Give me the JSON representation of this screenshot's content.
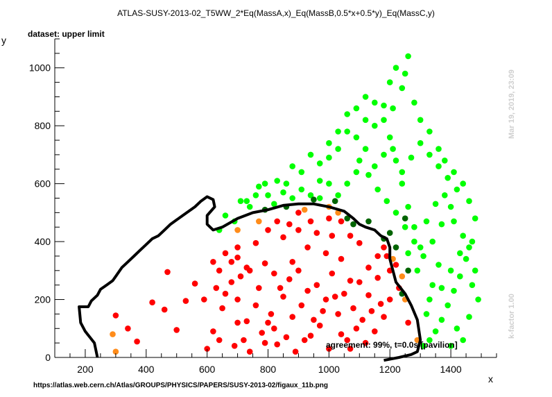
{
  "chart_data": {
    "type": "scatter",
    "title": "ATLAS-SUSY-2013-02_T5WW_2*Eq(MassA,x)_Eq(MassB,0.5*x+0.5*y)_Eq(MassC,y)",
    "subtitle": "dataset: upper limit",
    "xlabel": "x",
    "ylabel": "y",
    "xlim": [
      100,
      1550
    ],
    "ylim": [
      0,
      1100
    ],
    "x_ticks": [
      200,
      400,
      600,
      800,
      1000,
      1200,
      1400
    ],
    "y_ticks": [
      0,
      200,
      400,
      600,
      800,
      1000
    ],
    "grid": false,
    "colors": {
      "excluded": "#ff0000",
      "allowed": "#00ff00",
      "excluded_border": "#ff8c1a",
      "allowed_border": "#006400",
      "contour": "#000000"
    },
    "series": [
      {
        "key": "excluded",
        "points": [
          [
            300,
            145
          ],
          [
            340,
            100
          ],
          [
            370,
            55
          ],
          [
            420,
            190
          ],
          [
            460,
            165
          ],
          [
            470,
            295
          ],
          [
            500,
            95
          ],
          [
            530,
            195
          ],
          [
            560,
            255
          ],
          [
            590,
            200
          ],
          [
            620,
            330
          ],
          [
            640,
            300
          ],
          [
            660,
            360
          ],
          [
            700,
            345
          ],
          [
            730,
            310
          ],
          [
            760,
            395
          ],
          [
            790,
            325
          ],
          [
            820,
            290
          ],
          [
            850,
            415
          ],
          [
            880,
            330
          ],
          [
            900,
            440
          ],
          [
            930,
            380
          ],
          [
            960,
            430
          ],
          [
            990,
            360
          ],
          [
            1010,
            290
          ],
          [
            1040,
            340
          ],
          [
            1070,
            265
          ],
          [
            1100,
            395
          ],
          [
            1130,
            215
          ],
          [
            1160,
            275
          ],
          [
            1190,
            350
          ],
          [
            1200,
            200
          ],
          [
            1230,
            240
          ],
          [
            1260,
            120
          ],
          [
            1180,
            140
          ],
          [
            1150,
            90
          ],
          [
            1120,
            50
          ],
          [
            1090,
            100
          ],
          [
            1060,
            60
          ],
          [
            1030,
            150
          ],
          [
            1000,
            30
          ],
          [
            970,
            110
          ],
          [
            940,
            75
          ],
          [
            910,
            180
          ],
          [
            880,
            140
          ],
          [
            850,
            210
          ],
          [
            820,
            100
          ],
          [
            790,
            50
          ],
          [
            760,
            180
          ],
          [
            730,
            125
          ],
          [
            700,
            200
          ],
          [
            680,
            260
          ],
          [
            650,
            170
          ],
          [
            620,
            90
          ],
          [
            600,
            30
          ],
          [
            640,
            60
          ],
          [
            690,
            40
          ],
          [
            740,
            20
          ],
          [
            780,
            85
          ],
          [
            810,
            150
          ],
          [
            840,
            240
          ],
          [
            870,
            270
          ],
          [
            900,
            300
          ],
          [
            930,
            230
          ],
          [
            960,
            250
          ],
          [
            990,
            200
          ],
          [
            1020,
            210
          ],
          [
            1050,
            220
          ],
          [
            1080,
            170
          ],
          [
            1110,
            130
          ],
          [
            1140,
            160
          ],
          [
            1170,
            185
          ],
          [
            1200,
            300
          ],
          [
            1220,
            320
          ],
          [
            980,
            160
          ],
          [
            950,
            130
          ],
          [
            920,
            60
          ],
          [
            890,
            20
          ],
          [
            860,
            70
          ],
          [
            830,
            45
          ],
          [
            800,
            120
          ],
          [
            770,
            240
          ],
          [
            740,
            300
          ],
          [
            710,
            280
          ],
          [
            680,
            330
          ],
          [
            660,
            220
          ],
          [
            630,
            240
          ],
          [
            700,
            120
          ],
          [
            720,
            60
          ],
          [
            1040,
            80
          ],
          [
            1070,
            30
          ],
          [
            1100,
            260
          ],
          [
            1130,
            310
          ],
          [
            1160,
            350
          ],
          [
            1180,
            380
          ],
          [
            1010,
            420
          ],
          [
            1040,
            470
          ],
          [
            1070,
            420
          ],
          [
            870,
            460
          ],
          [
            900,
            500
          ],
          [
            940,
            470
          ],
          [
            830,
            470
          ],
          [
            800,
            440
          ],
          [
            700,
            380
          ],
          [
            1000,
            480
          ]
        ]
      },
      {
        "key": "allowed",
        "points": [
          [
            640,
            440
          ],
          [
            660,
            490
          ],
          [
            690,
            470
          ],
          [
            710,
            540
          ],
          [
            740,
            520
          ],
          [
            770,
            590
          ],
          [
            800,
            560
          ],
          [
            830,
            610
          ],
          [
            860,
            600
          ],
          [
            880,
            660
          ],
          [
            910,
            640
          ],
          [
            940,
            700
          ],
          [
            970,
            670
          ],
          [
            1000,
            740
          ],
          [
            1030,
            720
          ],
          [
            1060,
            780
          ],
          [
            1090,
            760
          ],
          [
            1120,
            820
          ],
          [
            1150,
            800
          ],
          [
            1180,
            870
          ],
          [
            1210,
            860
          ],
          [
            1240,
            930
          ],
          [
            1260,
            1040
          ],
          [
            1250,
            980
          ],
          [
            1220,
            1000
          ],
          [
            1200,
            950
          ],
          [
            1280,
            880
          ],
          [
            1300,
            820
          ],
          [
            1330,
            780
          ],
          [
            1360,
            720
          ],
          [
            1380,
            680
          ],
          [
            1410,
            640
          ],
          [
            1440,
            600
          ],
          [
            1460,
            540
          ],
          [
            1480,
            480
          ],
          [
            1470,
            400
          ],
          [
            1450,
            340
          ],
          [
            1430,
            280
          ],
          [
            1410,
            230
          ],
          [
            1390,
            180
          ],
          [
            1370,
            130
          ],
          [
            1350,
            90
          ],
          [
            1330,
            60
          ],
          [
            1310,
            40
          ],
          [
            1320,
            150
          ],
          [
            1340,
            250
          ],
          [
            1360,
            320
          ],
          [
            1300,
            380
          ],
          [
            1280,
            450
          ],
          [
            1260,
            520
          ],
          [
            1240,
            600
          ],
          [
            1220,
            680
          ],
          [
            1200,
            760
          ],
          [
            1180,
            820
          ],
          [
            1150,
            880
          ],
          [
            1120,
            900
          ],
          [
            1090,
            860
          ],
          [
            1060,
            840
          ],
          [
            1030,
            780
          ],
          [
            1000,
            690
          ],
          [
            970,
            610
          ],
          [
            940,
            560
          ],
          [
            910,
            580
          ],
          [
            880,
            550
          ],
          [
            850,
            570
          ],
          [
            820,
            530
          ],
          [
            790,
            600
          ],
          [
            760,
            560
          ],
          [
            730,
            540
          ],
          [
            1100,
            680
          ],
          [
            1130,
            630
          ],
          [
            1160,
            580
          ],
          [
            1190,
            540
          ],
          [
            1220,
            500
          ],
          [
            1250,
            450
          ],
          [
            1280,
            400
          ],
          [
            1310,
            350
          ],
          [
            1340,
            400
          ],
          [
            1370,
            460
          ],
          [
            1400,
            520
          ],
          [
            1420,
            580
          ],
          [
            1390,
            620
          ],
          [
            1360,
            660
          ],
          [
            1330,
            700
          ],
          [
            1300,
            740
          ],
          [
            1270,
            690
          ],
          [
            1240,
            640
          ],
          [
            1210,
            720
          ],
          [
            1180,
            700
          ],
          [
            1150,
            660
          ],
          [
            1120,
            720
          ],
          [
            1090,
            640
          ],
          [
            1060,
            600
          ],
          [
            1030,
            560
          ],
          [
            1000,
            600
          ],
          [
            970,
            550
          ],
          [
            1320,
            470
          ],
          [
            1350,
            530
          ],
          [
            1380,
            560
          ],
          [
            1410,
            470
          ],
          [
            1440,
            420
          ],
          [
            1460,
            380
          ],
          [
            1480,
            300
          ],
          [
            1490,
            200
          ],
          [
            1460,
            140
          ],
          [
            1420,
            100
          ],
          [
            1400,
            40
          ],
          [
            1440,
            60
          ],
          [
            1470,
            250
          ],
          [
            1430,
            360
          ],
          [
            1400,
            300
          ],
          [
            1370,
            240
          ],
          [
            1330,
            200
          ],
          [
            1290,
            300
          ],
          [
            1260,
            360
          ]
        ]
      },
      {
        "key": "excluded_border",
        "points": [
          [
            290,
            80
          ],
          [
            300,
            20
          ],
          [
            770,
            470
          ],
          [
            700,
            440
          ],
          [
            920,
            510
          ],
          [
            1000,
            520
          ],
          [
            1030,
            500
          ],
          [
            1210,
            340
          ],
          [
            1240,
            280
          ],
          [
            1250,
            200
          ],
          [
            1290,
            60
          ]
        ]
      },
      {
        "key": "allowed_border",
        "points": [
          [
            790,
            510
          ],
          [
            860,
            520
          ],
          [
            950,
            545
          ],
          [
            1020,
            540
          ],
          [
            1060,
            480
          ],
          [
            1080,
            460
          ],
          [
            1130,
            470
          ],
          [
            1180,
            410
          ],
          [
            1200,
            430
          ],
          [
            1220,
            380
          ],
          [
            1240,
            220
          ],
          [
            1260,
            300
          ],
          [
            1250,
            480
          ]
        ]
      }
    ],
    "contour": [
      [
        240,
        0
      ],
      [
        230,
        50
      ],
      [
        200,
        90
      ],
      [
        185,
        120
      ],
      [
        180,
        175
      ],
      [
        210,
        175
      ],
      [
        220,
        195
      ],
      [
        240,
        215
      ],
      [
        250,
        235
      ],
      [
        270,
        250
      ],
      [
        290,
        265
      ],
      [
        300,
        280
      ],
      [
        320,
        310
      ],
      [
        340,
        330
      ],
      [
        360,
        350
      ],
      [
        380,
        370
      ],
      [
        400,
        390
      ],
      [
        420,
        410
      ],
      [
        440,
        420
      ],
      [
        460,
        440
      ],
      [
        480,
        460
      ],
      [
        500,
        475
      ],
      [
        520,
        490
      ],
      [
        540,
        505
      ],
      [
        560,
        520
      ],
      [
        580,
        540
      ],
      [
        600,
        555
      ],
      [
        620,
        545
      ],
      [
        625,
        520
      ],
      [
        600,
        490
      ],
      [
        600,
        460
      ],
      [
        620,
        440
      ],
      [
        650,
        450
      ],
      [
        700,
        480
      ],
      [
        750,
        500
      ],
      [
        800,
        510
      ],
      [
        850,
        525
      ],
      [
        900,
        530
      ],
      [
        950,
        530
      ],
      [
        1000,
        520
      ],
      [
        1050,
        505
      ],
      [
        1080,
        480
      ],
      [
        1100,
        460
      ],
      [
        1120,
        450
      ],
      [
        1150,
        440
      ],
      [
        1170,
        420
      ],
      [
        1190,
        410
      ],
      [
        1200,
        380
      ],
      [
        1200,
        340
      ],
      [
        1210,
        300
      ],
      [
        1220,
        260
      ],
      [
        1250,
        220
      ],
      [
        1270,
        180
      ],
      [
        1290,
        130
      ],
      [
        1300,
        60
      ],
      [
        1290,
        20
      ],
      [
        1270,
        10
      ],
      [
        1230,
        0
      ],
      [
        1180,
        -10
      ]
    ],
    "agreement_text": "agreement: 99%, t=0.0s [pavilion]",
    "timestamp": "Mar 19, 2019, 23:09",
    "kfactor": "k-factor 1.00",
    "source": "https://atlas.web.cern.ch/Atlas/GROUPS/PHYSICS/PAPERS/SUSY-2013-02/figaux_11b.png"
  }
}
